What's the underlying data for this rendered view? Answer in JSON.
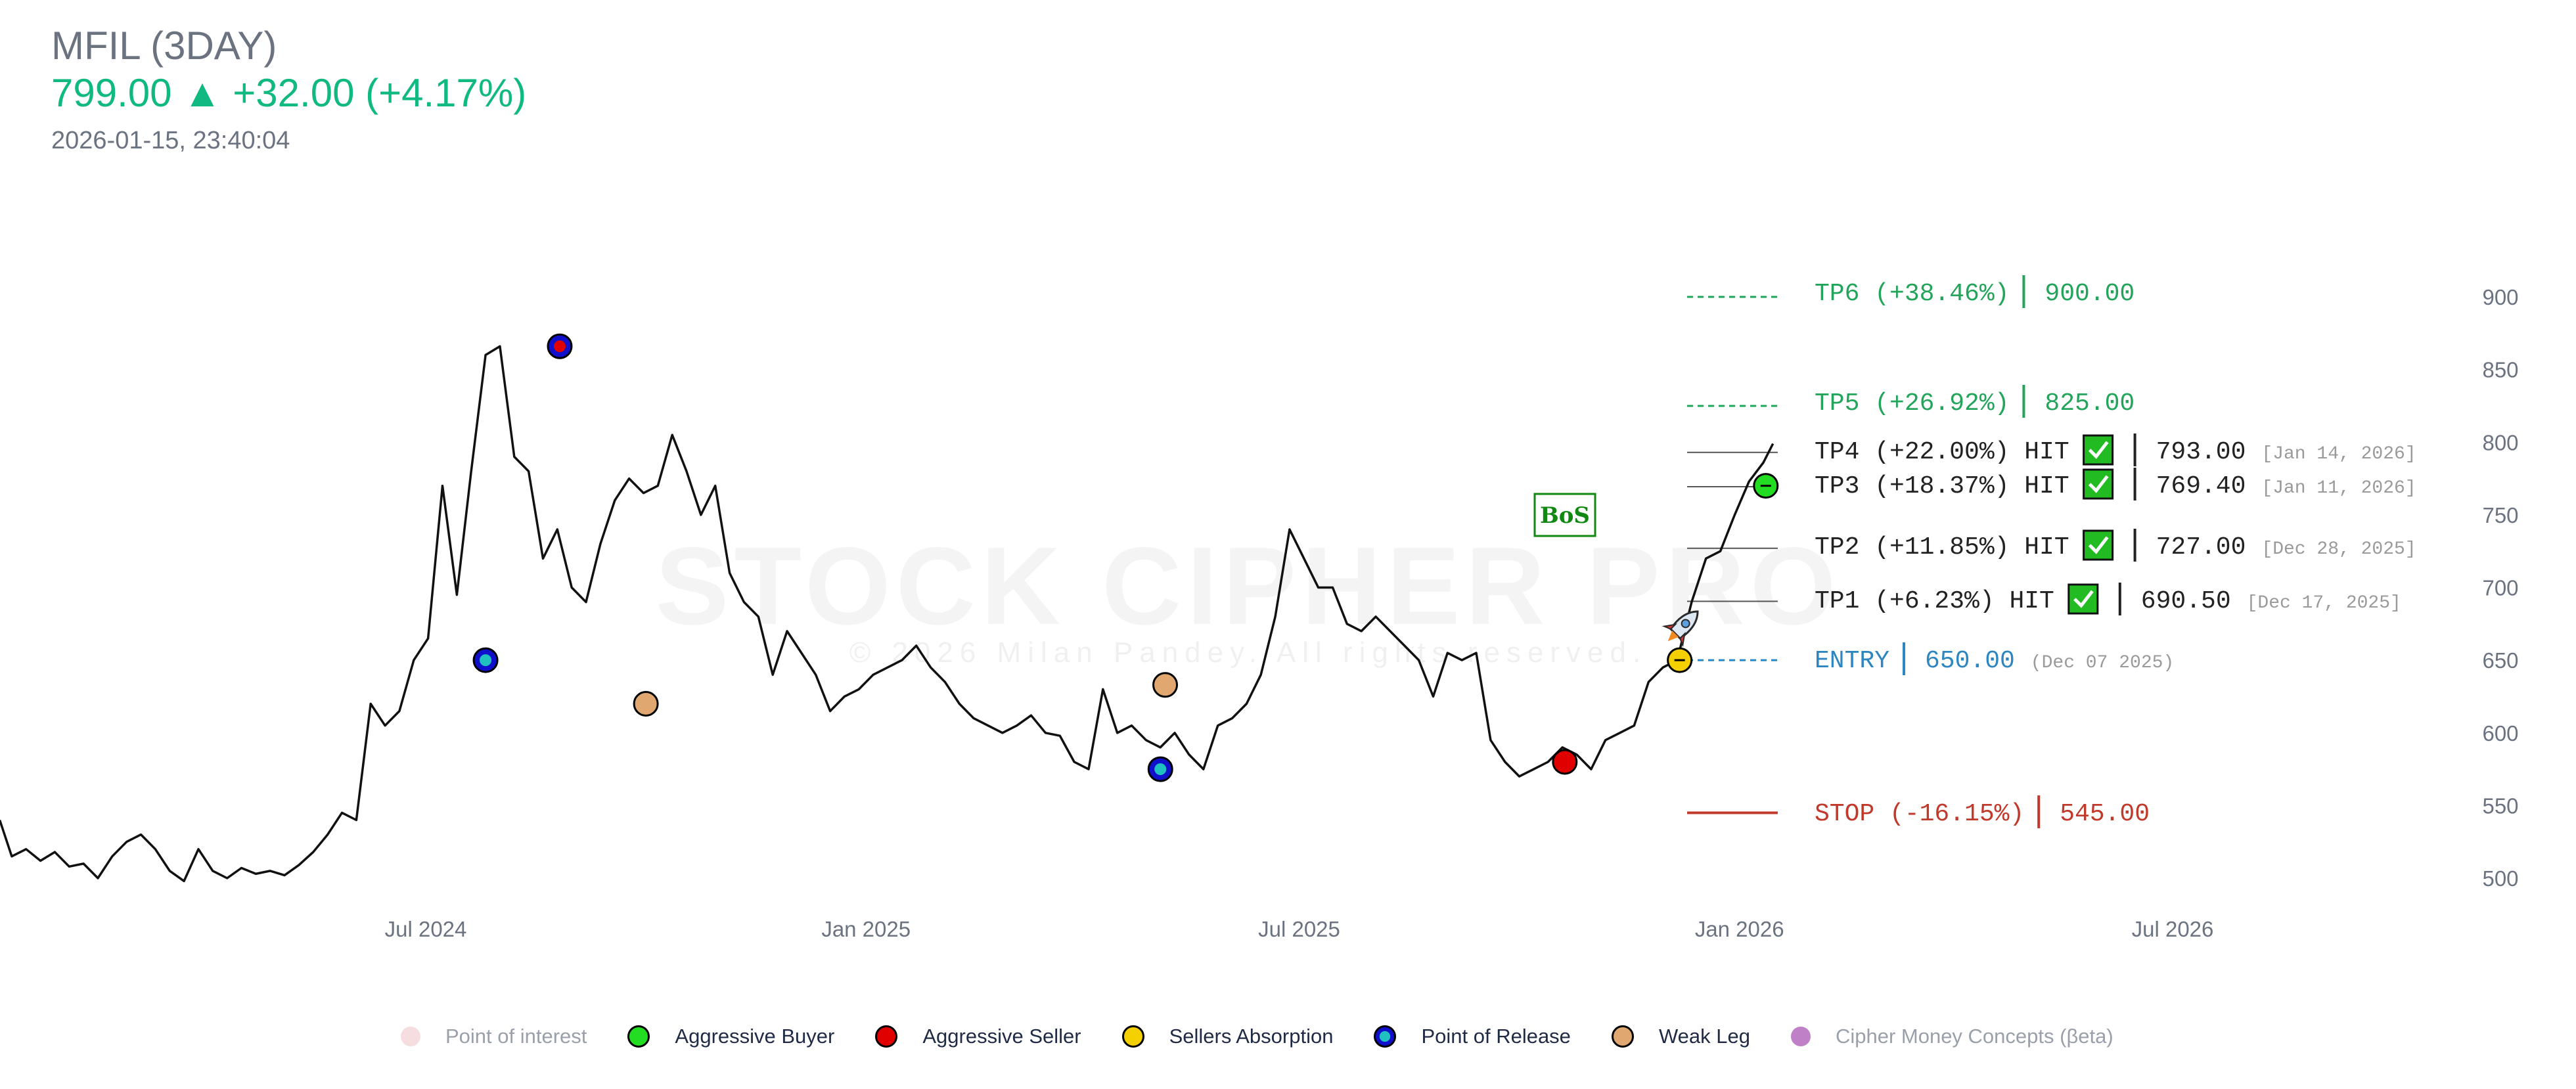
{
  "header": {
    "symbol": "MFIL (3DAY)",
    "price": "799.00",
    "arrow": "▲",
    "change": "+32.00 (+4.17%)",
    "timestamp": "2026-01-15, 23:40:04"
  },
  "watermark": {
    "title": "STOCK CIPHER PRO",
    "copyright": "© 2026 Milan Pandey. All rights reserved."
  },
  "badge": "BoS",
  "chart_data": {
    "type": "line",
    "ylim": [
      480,
      920
    ],
    "y_ticks": [
      500,
      550,
      600,
      650,
      700,
      750,
      800,
      850,
      900
    ],
    "x_ticks": [
      "Jul 2024",
      "Jan 2025",
      "Jul 2025",
      "Jan 2026",
      "Jul 2026"
    ],
    "x_tick_dates": [
      "2024-07-01",
      "2025-01-01",
      "2025-07-01",
      "2026-01-01",
      "2026-07-01"
    ],
    "xlim": [
      "2024-01-01",
      "2026-10-15"
    ],
    "series": [
      {
        "dates": [
          "2024-01-05",
          "2024-01-10",
          "2024-01-16",
          "2024-01-22",
          "2024-01-28",
          "2024-02-03",
          "2024-02-09",
          "2024-02-15",
          "2024-02-21",
          "2024-02-27",
          "2024-03-04",
          "2024-03-10",
          "2024-03-16",
          "2024-03-22",
          "2024-03-28",
          "2024-04-03",
          "2024-04-09",
          "2024-04-15",
          "2024-04-21",
          "2024-04-27",
          "2024-05-03",
          "2024-05-09",
          "2024-05-15",
          "2024-05-21",
          "2024-05-27",
          "2024-06-02",
          "2024-06-08",
          "2024-06-14",
          "2024-06-20",
          "2024-06-26",
          "2024-07-02",
          "2024-07-08",
          "2024-07-14",
          "2024-07-20",
          "2024-07-26",
          "2024-08-01",
          "2024-08-07",
          "2024-08-13",
          "2024-08-19",
          "2024-08-25",
          "2024-08-31",
          "2024-09-06",
          "2024-09-12",
          "2024-09-18",
          "2024-09-24",
          "2024-09-30",
          "2024-10-06",
          "2024-10-12",
          "2024-10-18",
          "2024-10-24",
          "2024-10-30",
          "2024-11-05",
          "2024-11-11",
          "2024-11-17",
          "2024-11-23",
          "2024-11-29",
          "2024-12-05",
          "2024-12-11",
          "2024-12-17",
          "2024-12-23",
          "2024-12-29",
          "2025-01-04",
          "2025-01-10",
          "2025-01-16",
          "2025-01-22",
          "2025-01-28",
          "2025-02-03",
          "2025-02-09",
          "2025-02-15",
          "2025-02-21",
          "2025-02-27",
          "2025-03-05",
          "2025-03-11",
          "2025-03-17",
          "2025-03-23",
          "2025-03-29",
          "2025-04-04",
          "2025-04-10",
          "2025-04-16",
          "2025-04-22",
          "2025-04-28",
          "2025-05-04",
          "2025-05-10",
          "2025-05-16",
          "2025-05-22",
          "2025-05-28",
          "2025-06-03",
          "2025-06-09",
          "2025-06-15",
          "2025-06-21",
          "2025-06-27",
          "2025-07-03",
          "2025-07-09",
          "2025-07-15",
          "2025-07-21",
          "2025-07-27",
          "2025-08-02",
          "2025-08-08",
          "2025-08-14",
          "2025-08-20",
          "2025-08-26",
          "2025-09-01",
          "2025-09-07",
          "2025-09-13",
          "2025-09-19",
          "2025-09-25",
          "2025-10-01",
          "2025-10-07",
          "2025-10-13",
          "2025-10-19",
          "2025-10-25",
          "2025-10-31",
          "2025-11-06",
          "2025-11-12",
          "2025-11-18",
          "2025-11-24",
          "2025-11-30",
          "2025-12-06",
          "2025-12-12",
          "2025-12-18",
          "2025-12-24",
          "2025-12-30",
          "2026-01-05",
          "2026-01-11",
          "2026-01-15"
        ],
        "values": [
          540,
          515,
          520,
          512,
          518,
          508,
          510,
          500,
          515,
          525,
          530,
          520,
          505,
          498,
          520,
          505,
          500,
          507,
          503,
          505,
          502,
          509,
          518,
          530,
          545,
          540,
          620,
          605,
          615,
          650,
          665,
          770,
          695,
          780,
          860,
          866,
          790,
          780,
          720,
          740,
          700,
          690,
          730,
          760,
          775,
          765,
          770,
          805,
          780,
          750,
          770,
          710,
          690,
          680,
          640,
          670,
          655,
          640,
          615,
          625,
          630,
          640,
          645,
          650,
          660,
          645,
          635,
          620,
          610,
          605,
          600,
          605,
          612,
          600,
          598,
          580,
          575,
          630,
          600,
          605,
          595,
          590,
          600,
          585,
          575,
          605,
          610,
          620,
          640,
          680,
          740,
          720,
          700,
          700,
          675,
          670,
          680,
          670,
          660,
          650,
          625,
          655,
          650,
          655,
          595,
          580,
          570,
          575,
          580,
          590,
          585,
          575,
          595,
          600,
          605,
          635,
          645,
          650,
          690,
          720,
          725,
          750,
          773,
          786,
          799
        ]
      }
    ],
    "levels": [
      {
        "key": "TP6",
        "label": "TP6 (+38.46%)",
        "value": 900.0,
        "value_text": "900.00",
        "hit": false,
        "date_text": "",
        "color": "#22a55a",
        "style": "dashed"
      },
      {
        "key": "TP5",
        "label": "TP5 (+26.92%)",
        "value": 825.0,
        "value_text": "825.00",
        "hit": false,
        "date_text": "",
        "color": "#22a55a",
        "style": "dashed"
      },
      {
        "key": "TP4",
        "label": "TP4 (+22.00%) HIT",
        "value": 793.0,
        "value_text": "793.00",
        "hit": true,
        "date_text": "[Jan 14, 2026]",
        "color": "#333333",
        "style": "solid"
      },
      {
        "key": "TP3",
        "label": "TP3 (+18.37%) HIT",
        "value": 769.4,
        "value_text": "769.40",
        "hit": true,
        "date_text": "[Jan 11, 2026]",
        "color": "#333333",
        "style": "solid"
      },
      {
        "key": "TP2",
        "label": "TP2 (+11.85%) HIT",
        "value": 727.0,
        "value_text": "727.00",
        "hit": true,
        "date_text": "[Dec 28, 2025]",
        "color": "#333333",
        "style": "solid"
      },
      {
        "key": "TP1",
        "label": "TP1 (+6.23%) HIT",
        "value": 690.5,
        "value_text": "690.50",
        "hit": true,
        "date_text": "[Dec 17, 2025]",
        "color": "#333333",
        "style": "solid"
      },
      {
        "key": "ENTRY",
        "label": "ENTRY",
        "value": 650.0,
        "value_text": "650.00",
        "hit": false,
        "date_text": "(Dec 07 2025)",
        "color": "#2e86c1",
        "style": "dashed"
      },
      {
        "key": "STOP",
        "label": "STOP (-16.15%)",
        "value": 545.0,
        "value_text": "545.00",
        "hit": false,
        "date_text": "",
        "color": "#c0392b",
        "style": "solid"
      }
    ],
    "markers": [
      {
        "date": "2024-07-26",
        "value": 650,
        "type": "release"
      },
      {
        "date": "2024-08-26",
        "value": 866,
        "type": "release-seller"
      },
      {
        "date": "2024-10-01",
        "value": 620,
        "type": "weak-leg"
      },
      {
        "date": "2025-05-04",
        "value": 575,
        "type": "release"
      },
      {
        "date": "2025-05-06",
        "value": 633,
        "type": "weak-leg"
      },
      {
        "date": "2025-10-20",
        "value": 580,
        "type": "seller"
      },
      {
        "date": "2025-12-07",
        "value": 650,
        "type": "absorption"
      },
      {
        "date": "2026-01-12",
        "value": 770,
        "type": "buyer"
      }
    ],
    "legend": [
      {
        "name": "Point of interest",
        "type": "poi",
        "faded": true
      },
      {
        "name": "Aggressive Buyer",
        "type": "buyer",
        "faded": false
      },
      {
        "name": "Aggressive Seller",
        "type": "seller",
        "faded": false
      },
      {
        "name": "Sellers Absorption",
        "type": "absorption",
        "faded": false
      },
      {
        "name": "Point of Release",
        "type": "release",
        "faded": false
      },
      {
        "name": "Weak Leg",
        "type": "weak-leg",
        "faded": false
      },
      {
        "name": "Cipher Money Concepts (βeta)",
        "type": "cmc",
        "faded": true
      }
    ],
    "legend_placement": "bottom",
    "grid": false,
    "colors": {
      "up": "#10b981",
      "line": "#111111",
      "buyer": "#22dd22",
      "seller": "#e00000",
      "absorption": "#f5d000",
      "release_outer": "#1010cc",
      "release_inner": "#20c0c0",
      "weak_leg": "#e0a870",
      "poi": "#f5dde0",
      "cmc": "#c080c8",
      "check": "#22bb22"
    }
  }
}
